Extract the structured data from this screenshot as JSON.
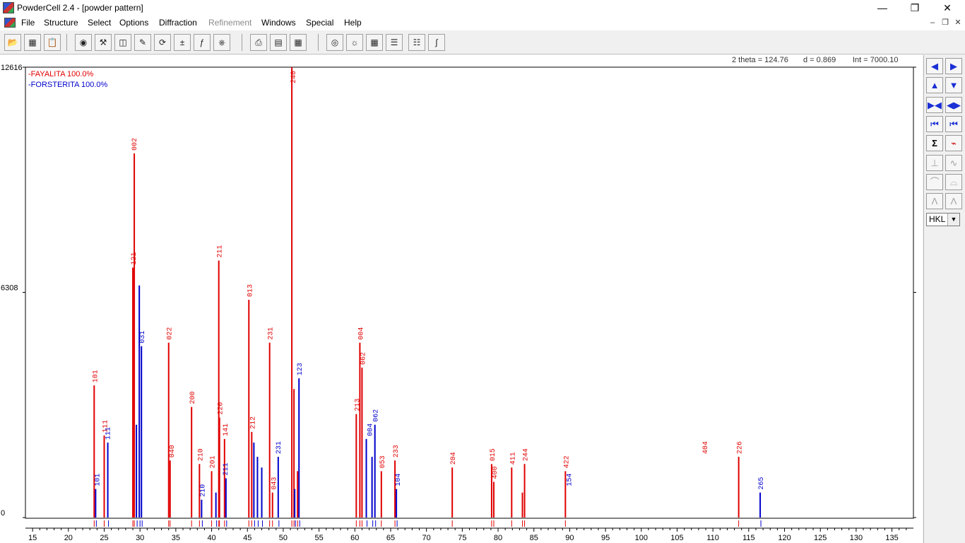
{
  "window": {
    "title": "PowderCell 2.4 - [powder pattern]"
  },
  "menu": [
    "File",
    "Structure",
    "Select",
    "Options",
    "Diffraction",
    "Refinement",
    "Windows",
    "Special",
    "Help"
  ],
  "readout": {
    "two_theta": "2 theta = 124.76",
    "d": "d = 0.869",
    "int": "Int = 7000.10"
  },
  "side": {
    "hkl": "HKL"
  },
  "chart_data": {
    "type": "line",
    "xlim": [
      14,
      138
    ],
    "ylim": [
      0,
      12616
    ],
    "x_ticks": [
      15,
      20,
      25,
      30,
      35,
      40,
      45,
      50,
      55,
      60,
      65,
      70,
      75,
      80,
      85,
      90,
      95,
      100,
      105,
      110,
      115,
      120,
      125,
      130,
      135
    ],
    "y_ticks": [
      0,
      6308,
      12616
    ],
    "legend_position": "top-left",
    "series": [
      {
        "name": "FAYALITA",
        "color": "#e00000",
        "legend_label": "-FAYALITA  100.0%",
        "peaks": [
          [
            23.6,
            3700
          ],
          [
            25.0,
            2300
          ],
          [
            29.0,
            7000
          ],
          [
            29.2,
            10200
          ],
          [
            34.0,
            4900
          ],
          [
            34.2,
            1600
          ],
          [
            37.2,
            3100
          ],
          [
            38.3,
            1500
          ],
          [
            40.0,
            1300
          ],
          [
            41.0,
            7200
          ],
          [
            41.1,
            2800
          ],
          [
            41.8,
            2200
          ],
          [
            45.2,
            6100
          ],
          [
            45.6,
            2400
          ],
          [
            48.1,
            4900
          ],
          [
            48.5,
            700
          ],
          [
            51.2,
            12616
          ],
          [
            51.5,
            3600
          ],
          [
            52.0,
            1300
          ],
          [
            60.2,
            2900
          ],
          [
            60.7,
            4900
          ],
          [
            61.0,
            4200
          ],
          [
            63.7,
            1300
          ],
          [
            65.6,
            1600
          ],
          [
            73.6,
            1400
          ],
          [
            79.1,
            1500
          ],
          [
            79.4,
            1000
          ],
          [
            81.9,
            1400
          ],
          [
            83.4,
            700
          ],
          [
            83.7,
            1500
          ],
          [
            89.4,
            1300
          ],
          [
            113.6,
            1700
          ]
        ],
        "labels": [
          [
            23.6,
            "101"
          ],
          [
            25.0,
            "111"
          ],
          [
            29.1,
            "002"
          ],
          [
            29.0,
            "121"
          ],
          [
            34.0,
            "022"
          ],
          [
            34.3,
            "040"
          ],
          [
            37.2,
            "200"
          ],
          [
            38.3,
            "210"
          ],
          [
            40.0,
            "201"
          ],
          [
            41.0,
            "211"
          ],
          [
            41.1,
            "220"
          ],
          [
            41.8,
            "141"
          ],
          [
            45.2,
            "013"
          ],
          [
            45.6,
            "212"
          ],
          [
            48.1,
            "231"
          ],
          [
            48.6,
            "043"
          ],
          [
            51.3,
            "240"
          ],
          [
            60.2,
            "213"
          ],
          [
            60.7,
            "004"
          ],
          [
            61.0,
            "062"
          ],
          [
            63.7,
            "053"
          ],
          [
            65.6,
            "233"
          ],
          [
            73.6,
            "204"
          ],
          [
            79.1,
            "015"
          ],
          [
            79.4,
            "400"
          ],
          [
            81.9,
            "411"
          ],
          [
            83.7,
            "244"
          ],
          [
            89.4,
            "422"
          ],
          [
            108.8,
            "404"
          ],
          [
            113.6,
            "226"
          ]
        ]
      },
      {
        "name": "FORSTERITA",
        "color": "#0000cc",
        "legend_label": "-FORSTERITA  100.0%",
        "peaks": [
          [
            23.8,
            800
          ],
          [
            25.5,
            2100
          ],
          [
            29.5,
            2600
          ],
          [
            29.9,
            6500
          ],
          [
            30.2,
            4800
          ],
          [
            38.6,
            500
          ],
          [
            40.6,
            700
          ],
          [
            42.0,
            1100
          ],
          [
            45.9,
            2100
          ],
          [
            46.4,
            1700
          ],
          [
            47.0,
            1400
          ],
          [
            49.3,
            1700
          ],
          [
            51.6,
            800
          ],
          [
            52.2,
            3900
          ],
          [
            61.6,
            2200
          ],
          [
            62.4,
            1700
          ],
          [
            62.8,
            2600
          ],
          [
            65.8,
            800
          ],
          [
            116.6,
            700
          ]
        ],
        "labels": [
          [
            23.9,
            "101"
          ],
          [
            25.4,
            "111"
          ],
          [
            30.2,
            "031"
          ],
          [
            38.6,
            "210"
          ],
          [
            41.8,
            "211"
          ],
          [
            49.2,
            "231"
          ],
          [
            52.2,
            "123"
          ],
          [
            62.0,
            "004"
          ],
          [
            62.8,
            "062"
          ],
          [
            65.9,
            "104"
          ],
          [
            89.8,
            "154"
          ],
          [
            116.6,
            "265"
          ]
        ]
      }
    ]
  }
}
